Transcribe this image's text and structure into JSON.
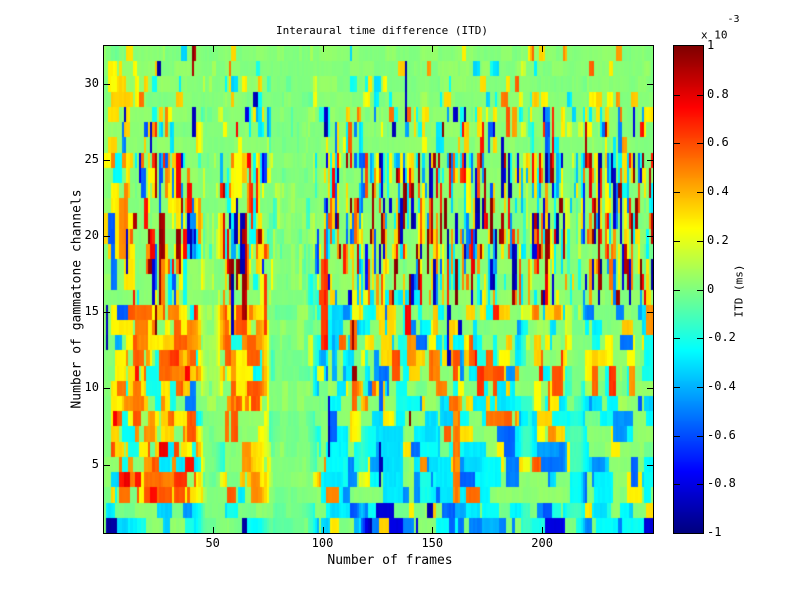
{
  "chart_data": {
    "type": "heatmap",
    "title": "Interaural time difference (ITD)",
    "xlabel": "Number of frames",
    "ylabel": "Number of gammatone channels",
    "x_range": [
      1,
      250
    ],
    "y_range": [
      1,
      32
    ],
    "x_ticks": [
      "50",
      "100",
      "150",
      "200"
    ],
    "y_ticks": [
      "5",
      "10",
      "15",
      "20",
      "25",
      "30"
    ],
    "colormap": "jet",
    "clim": [
      -0.001,
      0.001
    ],
    "grid": false,
    "colorbar": {
      "label": "ITD (ms)",
      "ticks": [
        "1",
        "0.8",
        "0.6",
        "0.4",
        "0.2",
        "0",
        "-0.2",
        "-0.4",
        "-0.6",
        "-0.8",
        "-1"
      ],
      "tick_values": [
        1,
        0.8,
        0.6,
        0.4,
        0.2,
        0,
        -0.2,
        -0.4,
        -0.6,
        -0.8,
        -1
      ],
      "multiplier_base": "x 10",
      "multiplier_exp": "-3"
    },
    "generation": {
      "seed": 20240915,
      "base_value": 0.02,
      "base_jitter": 0.05,
      "palettes": {
        "green": [
          0.02,
          0.05
        ],
        "cyan": [
          -0.27,
          0.07
        ],
        "blue": [
          -0.5,
          0.1
        ],
        "navy": [
          -0.88,
          0.08
        ],
        "yellow": [
          0.3,
          0.06
        ],
        "orange": [
          0.52,
          0.08
        ],
        "red": [
          0.72,
          0.08
        ],
        "darkred": [
          0.95,
          0.05
        ]
      },
      "regions": [
        {
          "ch": [
            1,
            2
          ],
          "f": [
            1,
            99
          ],
          "density": 1.9,
          "w": [
            4,
            9
          ],
          "h": [
            1,
            1
          ],
          "mix": {
            "cyan": 0.62,
            "green": 0.24,
            "blue": 0.12,
            "navy": 0.02
          }
        },
        {
          "ch": [
            1,
            2
          ],
          "f": [
            100,
            250
          ],
          "density": 2.0,
          "w": [
            3,
            8
          ],
          "h": [
            1,
            1
          ],
          "mix": {
            "cyan": 0.45,
            "blue": 0.3,
            "green": 0.1,
            "navy": 0.1,
            "yellow": 0.05
          }
        },
        {
          "ch": [
            3,
            4
          ],
          "f": [
            4,
            45
          ],
          "density": 2.4,
          "w": [
            2,
            5
          ],
          "h": [
            1,
            1
          ],
          "mix": {
            "orange": 0.4,
            "red": 0.2,
            "yellow": 0.2,
            "darkred": 0.08,
            "cyan": 0.12
          }
        },
        {
          "ch": [
            5,
            6
          ],
          "f": [
            4,
            45
          ],
          "density": 2.2,
          "w": [
            2,
            4
          ],
          "h": [
            1,
            1
          ],
          "mix": {
            "orange": 0.35,
            "yellow": 0.28,
            "red": 0.1,
            "cyan": 0.15,
            "green": 0.07,
            "darkred": 0.05
          }
        },
        {
          "ch": [
            7,
            8
          ],
          "f": [
            4,
            45
          ],
          "density": 2.0,
          "w": [
            2,
            4
          ],
          "h": [
            1,
            1
          ],
          "mix": {
            "yellow": 0.32,
            "orange": 0.22,
            "cyan": 0.22,
            "green": 0.14,
            "red": 0.1
          }
        },
        {
          "ch": [
            3,
            8
          ],
          "f": [
            46,
            99
          ],
          "density": 1.2,
          "w": [
            2,
            5
          ],
          "h": [
            1,
            2
          ],
          "mix": {
            "yellow": 0.3,
            "green": 0.25,
            "cyan": 0.28,
            "orange": 0.17
          }
        },
        {
          "ch": [
            2,
            7
          ],
          "f": [
            148,
            168
          ],
          "density": 2.0,
          "w": [
            3,
            7
          ],
          "h": [
            1,
            2
          ],
          "mix": {
            "blue": 0.5,
            "cyan": 0.35,
            "navy": 0.05,
            "green": 0.1
          }
        },
        {
          "ch": [
            5,
            8
          ],
          "f": [
            188,
            216
          ],
          "density": 2.0,
          "w": [
            2,
            5
          ],
          "h": [
            1,
            2
          ],
          "mix": {
            "orange": 0.55,
            "yellow": 0.2,
            "red": 0.12,
            "cyan": 0.13
          }
        },
        {
          "ch": [
            3,
            9
          ],
          "f": [
            100,
            250
          ],
          "density": 1.5,
          "w": [
            3,
            8
          ],
          "h": [
            1,
            2
          ],
          "mix": {
            "cyan": 0.45,
            "blue": 0.25,
            "yellow": 0.12,
            "green": 0.1,
            "orange": 0.08
          }
        },
        {
          "ch": [
            9,
            15
          ],
          "f": [
            4,
            75
          ],
          "density": 2.5,
          "w": [
            2,
            5
          ],
          "h": [
            1,
            2
          ],
          "mix": {
            "orange": 0.45,
            "yellow": 0.38,
            "red": 0.06,
            "cyan": 0.06,
            "blue": 0.05
          }
        },
        {
          "ch": [
            10,
            16
          ],
          "f": [
            96,
            145
          ],
          "density": 1.3,
          "w": [
            2,
            5
          ],
          "h": [
            1,
            2
          ],
          "mix": {
            "cyan": 0.5,
            "yellow": 0.2,
            "blue": 0.12,
            "green": 0.1,
            "orange": 0.08
          }
        },
        {
          "ch": [
            9,
            15
          ],
          "f": [
            76,
            250
          ],
          "density": 1.05,
          "w": [
            2,
            4
          ],
          "h": [
            1,
            2
          ],
          "mix": {
            "cyan": 0.32,
            "yellow": 0.24,
            "orange": 0.14,
            "green": 0.14,
            "blue": 0.1,
            "red": 0.06
          }
        },
        {
          "ch": [
            16,
            25
          ],
          "f": [
            1,
            12
          ],
          "density": 1.8,
          "w": [
            2,
            4
          ],
          "h": [
            2,
            3
          ],
          "mix": {
            "yellow": 0.6,
            "orange": 0.2,
            "red": 0.06,
            "cyan": 0.07,
            "blue": 0.07
          }
        },
        {
          "ch": [
            16,
            25
          ],
          "f": [
            13,
            99
          ],
          "density": 1.05,
          "w": [
            1,
            2
          ],
          "h": [
            1,
            3
          ],
          "mix": {
            "yellow": 0.32,
            "orange": 0.16,
            "green": 0.12,
            "cyan": 0.12,
            "red": 0.09,
            "blue": 0.09,
            "navy": 0.05,
            "darkred": 0.05
          }
        },
        {
          "ch": [
            16,
            25
          ],
          "f": [
            100,
            250
          ],
          "density": 0.9,
          "w": [
            1,
            1
          ],
          "h": [
            1,
            3
          ],
          "mix": {
            "yellow": 0.2,
            "cyan": 0.15,
            "green": 0.1,
            "orange": 0.1,
            "red": 0.11,
            "blue": 0.12,
            "navy": 0.12,
            "darkred": 0.1
          }
        },
        {
          "ch": [
            26,
            28
          ],
          "f": [
            1,
            12
          ],
          "density": 1.3,
          "w": [
            2,
            4
          ],
          "h": [
            1,
            2
          ],
          "mix": {
            "yellow": 0.65,
            "orange": 0.15,
            "green": 0.2
          }
        },
        {
          "ch": [
            26,
            28
          ],
          "f": [
            13,
            250
          ],
          "density": 0.55,
          "w": [
            1,
            2
          ],
          "h": [
            1,
            2
          ],
          "mix": {
            "yellow": 0.25,
            "cyan": 0.25,
            "green": 0.14,
            "red": 0.08,
            "blue": 0.1,
            "navy": 0.08,
            "orange": 0.1
          }
        },
        {
          "ch": [
            29,
            30
          ],
          "f": [
            1,
            16
          ],
          "density": 1.4,
          "w": [
            2,
            4
          ],
          "h": [
            1,
            2
          ],
          "mix": {
            "yellow": 0.7,
            "orange": 0.12,
            "green": 0.18
          }
        },
        {
          "ch": [
            29,
            30
          ],
          "f": [
            17,
            250
          ],
          "density": 0.3,
          "w": [
            1,
            3
          ],
          "h": [
            1,
            1
          ],
          "mix": {
            "yellow": 0.3,
            "cyan": 0.3,
            "green": 0.2,
            "orange": 0.1,
            "navy": 0.05,
            "blue": 0.05
          }
        },
        {
          "ch": [
            31,
            32
          ],
          "f": [
            1,
            16
          ],
          "density": 0.9,
          "w": [
            2,
            3
          ],
          "h": [
            1,
            1
          ],
          "mix": {
            "yellow": 0.6,
            "green": 0.4
          }
        },
        {
          "ch": [
            31,
            32
          ],
          "f": [
            17,
            250
          ],
          "density": 0.15,
          "w": [
            1,
            3
          ],
          "h": [
            1,
            1
          ],
          "mix": {
            "yellow": 0.3,
            "cyan": 0.3,
            "green": 0.2,
            "orange": 0.1,
            "navy": 0.1
          }
        }
      ],
      "features": [
        {
          "f": [
            64,
            65
          ],
          "ch": [
            15,
            21
          ],
          "value": 0.9
        },
        {
          "f": [
            100,
            102
          ],
          "ch": [
            13,
            18
          ],
          "value": 0.68
        },
        {
          "f": [
            160,
            162
          ],
          "ch": [
            3,
            9
          ],
          "value": 0.5
        }
      ],
      "envelope_dips": [
        {
          "c": 49,
          "s": 5,
          "d": 0.85,
          "p": 4
        },
        {
          "c": 86,
          "s": 12,
          "d": 0.9,
          "p": 6
        },
        {
          "c": 118,
          "s": 2,
          "d": 0.4,
          "p": 2
        },
        {
          "c": 193,
          "s": 2.5,
          "d": 0.55,
          "p": 4
        },
        {
          "c": 215,
          "s": 4,
          "d": 0.6,
          "p": 4
        }
      ],
      "spikes": {
        "count": 130,
        "mid_prob": 1.0,
        "out_prob": 0.3,
        "left_prob": 0.5,
        "vals": {
          "navy": 0.45,
          "darkred": 0.3,
          "red": 0.1,
          "blue": 0.15
        }
      }
    }
  }
}
